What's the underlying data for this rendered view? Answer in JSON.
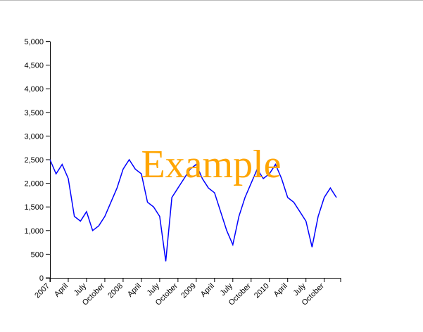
{
  "chart_data": {
    "type": "line",
    "watermark": "Example",
    "x": [
      "2007-01",
      "2007-02",
      "2007-03",
      "2007-04",
      "2007-05",
      "2007-06",
      "2007-07",
      "2007-08",
      "2007-09",
      "2007-10",
      "2007-11",
      "2007-12",
      "2008-01",
      "2008-02",
      "2008-03",
      "2008-04",
      "2008-05",
      "2008-06",
      "2008-07",
      "2008-08",
      "2008-09",
      "2008-10",
      "2008-11",
      "2008-12",
      "2009-01",
      "2009-02",
      "2009-03",
      "2009-04",
      "2009-05",
      "2009-06",
      "2009-07",
      "2009-08",
      "2009-09",
      "2009-10",
      "2009-11",
      "2009-12",
      "2010-01",
      "2010-02",
      "2010-03",
      "2010-04",
      "2010-05",
      "2010-06",
      "2010-07",
      "2010-08",
      "2010-09",
      "2010-10",
      "2010-11",
      "2010-12"
    ],
    "series": [
      {
        "color": "#0000ff",
        "values": [
          2500,
          2200,
          2400,
          2100,
          1300,
          1200,
          1400,
          1000,
          1100,
          1300,
          1600,
          1900,
          2300,
          2500,
          2300,
          2200,
          1600,
          1500,
          1300,
          350,
          1700,
          1900,
          2100,
          2300,
          2400,
          2100,
          1900,
          1800,
          1400,
          1000,
          700,
          1300,
          1700,
          2000,
          2300,
          2100,
          2200,
          2400,
          2100,
          1700,
          1600,
          1400,
          1200,
          650,
          1300,
          1700,
          1900,
          1700
        ]
      }
    ],
    "xlim": [
      "2007-01",
      "2010-12"
    ],
    "xticks": [
      {
        "value": "2007-01",
        "label": "2007"
      },
      {
        "value": "2007-04",
        "label": "April"
      },
      {
        "value": "2007-07",
        "label": "July"
      },
      {
        "value": "2007-10",
        "label": "October"
      },
      {
        "value": "2008-01",
        "label": "2008"
      },
      {
        "value": "2008-04",
        "label": "April"
      },
      {
        "value": "2008-07",
        "label": "July"
      },
      {
        "value": "2008-10",
        "label": "October"
      },
      {
        "value": "2009-01",
        "label": "2009"
      },
      {
        "value": "2009-04",
        "label": "April"
      },
      {
        "value": "2009-07",
        "label": "July"
      },
      {
        "value": "2009-10",
        "label": "October"
      },
      {
        "value": "2010-01",
        "label": "2010"
      },
      {
        "value": "2010-04",
        "label": "April"
      },
      {
        "value": "2010-07",
        "label": "July"
      },
      {
        "value": "2010-10",
        "label": "October"
      }
    ],
    "ylim": [
      0,
      5000
    ],
    "yticks": [
      0,
      500,
      {
        "value": 1000,
        "label": "1,000"
      },
      {
        "value": 1500,
        "label": "1,500"
      },
      {
        "value": 2000,
        "label": "2,000"
      },
      {
        "value": 2500,
        "label": "2,500"
      },
      {
        "value": 3000,
        "label": "3,000"
      },
      {
        "value": 3500,
        "label": "3,500"
      },
      {
        "value": 4000,
        "label": "4,000"
      },
      {
        "value": 4500,
        "label": "4,500"
      },
      {
        "value": 5000,
        "label": "5,000"
      }
    ]
  }
}
